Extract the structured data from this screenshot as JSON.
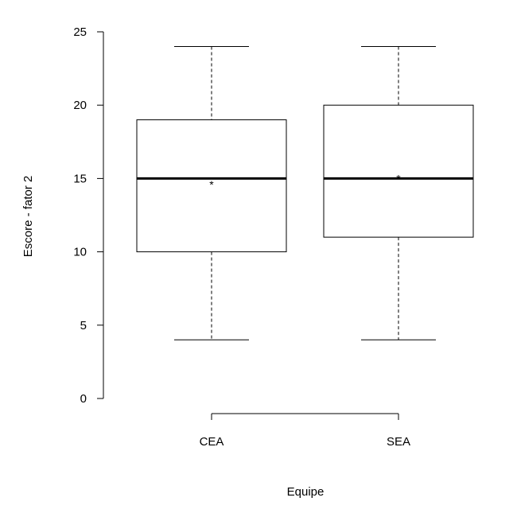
{
  "chart_data": {
    "type": "box",
    "xlabel": "Equipe",
    "ylabel": "Escore - fator 2",
    "ylim": [
      0,
      25
    ],
    "yticks": [
      0,
      5,
      10,
      15,
      20,
      25
    ],
    "grid": false,
    "mean_marker": "*",
    "groups": [
      {
        "category": "CEA",
        "min": 4,
        "q1": 10,
        "median": 15,
        "q3": 19,
        "max": 24,
        "mean": 14.7
      },
      {
        "category": "SEA",
        "min": 4,
        "q1": 11,
        "median": 15,
        "q3": 20,
        "max": 24,
        "mean": 15.1
      }
    ]
  }
}
